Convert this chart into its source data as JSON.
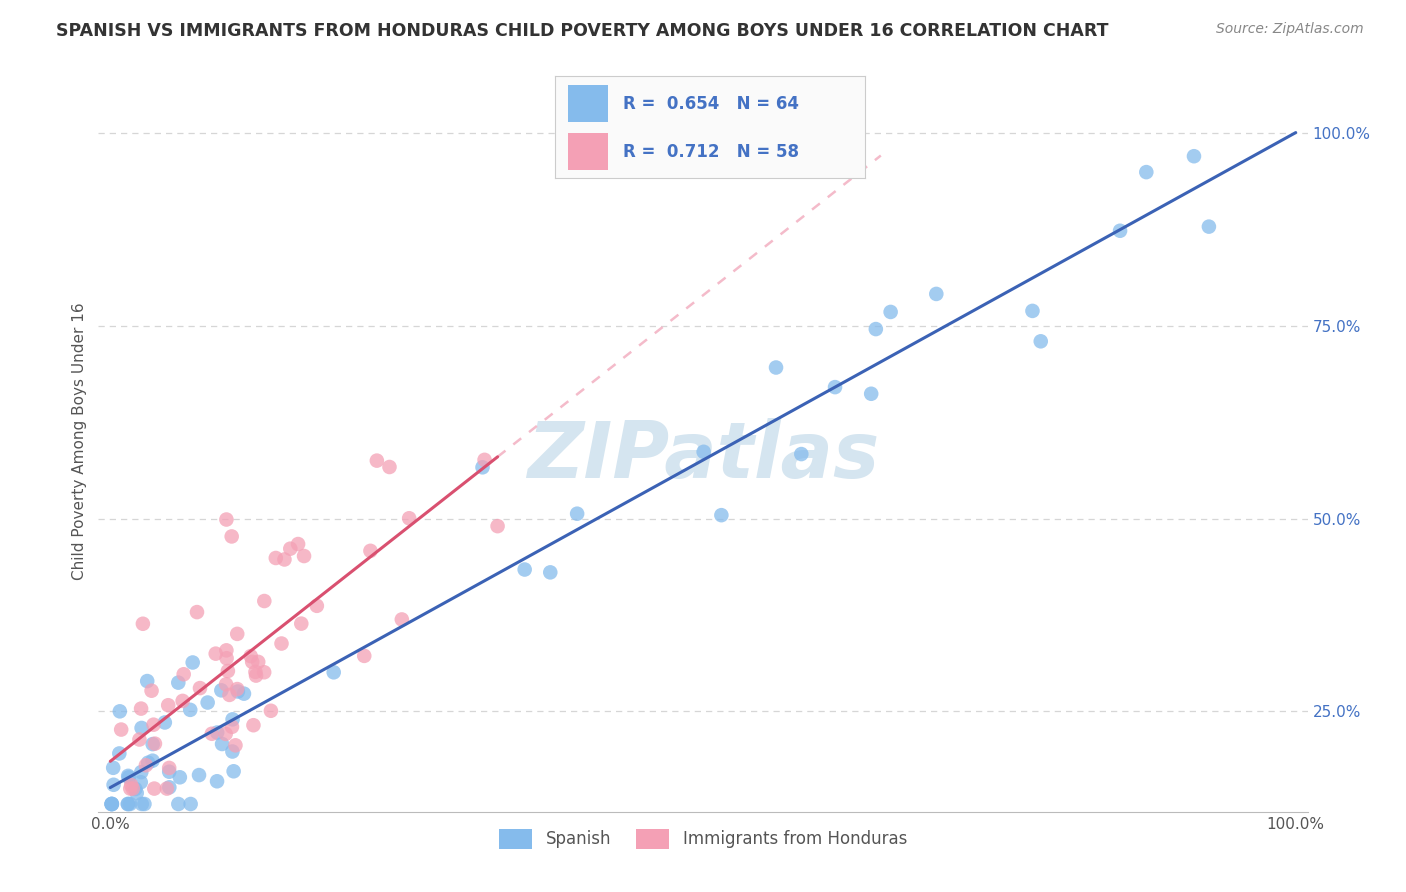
{
  "title": "SPANISH VS IMMIGRANTS FROM HONDURAS CHILD POVERTY AMONG BOYS UNDER 16 CORRELATION CHART",
  "source": "Source: ZipAtlas.com",
  "ylabel": "Child Poverty Among Boys Under 16",
  "xlim": [
    -0.01,
    1.01
  ],
  "ylim": [
    0.12,
    1.08
  ],
  "xtick_positions": [
    0.0,
    0.25,
    0.5,
    0.75,
    1.0
  ],
  "xtick_labels": [
    "0.0%",
    "",
    "",
    "",
    "100.0%"
  ],
  "ytick_positions_right": [
    0.25,
    0.5,
    0.75,
    1.0
  ],
  "ytick_labels_right": [
    "25.0%",
    "50.0%",
    "75.0%",
    "100.0%"
  ],
  "spanish_R": 0.654,
  "spanish_N": 64,
  "honduras_R": 0.712,
  "honduras_N": 58,
  "spanish_color": "#85BBEC",
  "honduras_color": "#F4A0B5",
  "spanish_line_color": "#3B62B5",
  "honduras_line_color": "#D95070",
  "honduras_line_dash_color": "#F4BBCA",
  "watermark": "ZIPatlas",
  "watermark_color": "#D5E5F0",
  "title_color": "#333333",
  "label_color": "#555555",
  "R_N_color": "#4472C4",
  "grid_color": "#CCCCCC",
  "legend_facecolor": "#FAFAFA",
  "legend_edgecolor": "#CCCCCC"
}
